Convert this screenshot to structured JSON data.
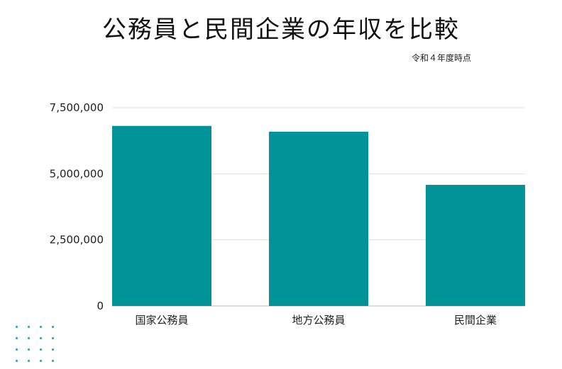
{
  "header": {
    "title": "公務員と民間企業の年収を比較",
    "subtitle": "令和４年度時点"
  },
  "chart_data": {
    "type": "bar",
    "title": "公務員と民間企業の年収を比較",
    "subtitle": "令和４年度時点",
    "categories": [
      "国家公務員",
      "地方公務員",
      "民間企業"
    ],
    "values": [
      6810000,
      6590000,
      4580000
    ],
    "xlabel": "",
    "ylabel": "",
    "ylim": [
      0,
      7500000
    ],
    "yticks": [
      0,
      2500000,
      5000000,
      7500000
    ],
    "ytick_labels": [
      "0",
      "2,500,000",
      "5,000,000",
      "7,500,000"
    ],
    "grid": true,
    "legend": "none",
    "bar_color": "#009398",
    "grid_color": "#dddddd"
  },
  "decoration": {
    "dot_color": "#1aa3b3"
  }
}
